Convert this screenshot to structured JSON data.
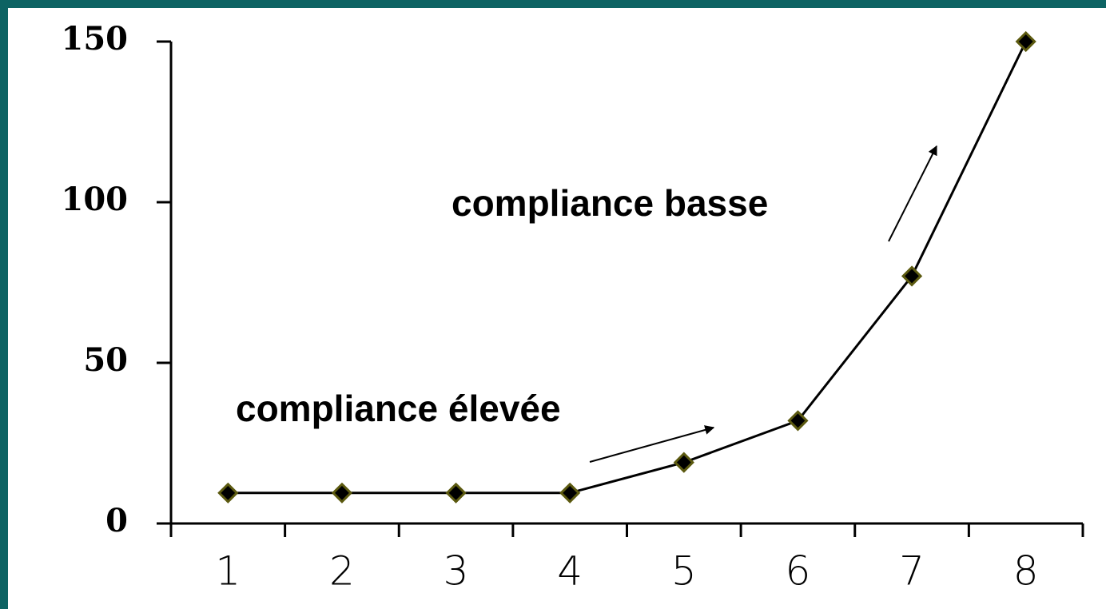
{
  "chart_data": {
    "type": "line",
    "categories": [
      "1",
      "2",
      "3",
      "4",
      "5",
      "6",
      "7",
      "8"
    ],
    "series": [
      {
        "color": "#000000",
        "marker_color": "#000000",
        "marker_edge": "#5c5a10",
        "values": [
          9.5,
          9.5,
          9.5,
          9.5,
          19,
          32,
          77,
          150
        ]
      }
    ],
    "ylim": [
      0,
      150
    ],
    "yticks": [
      0,
      50,
      100,
      150
    ],
    "grid": false,
    "annotations": [
      {
        "text": "compliance basse"
      },
      {
        "text": "compliance élevée"
      }
    ]
  }
}
